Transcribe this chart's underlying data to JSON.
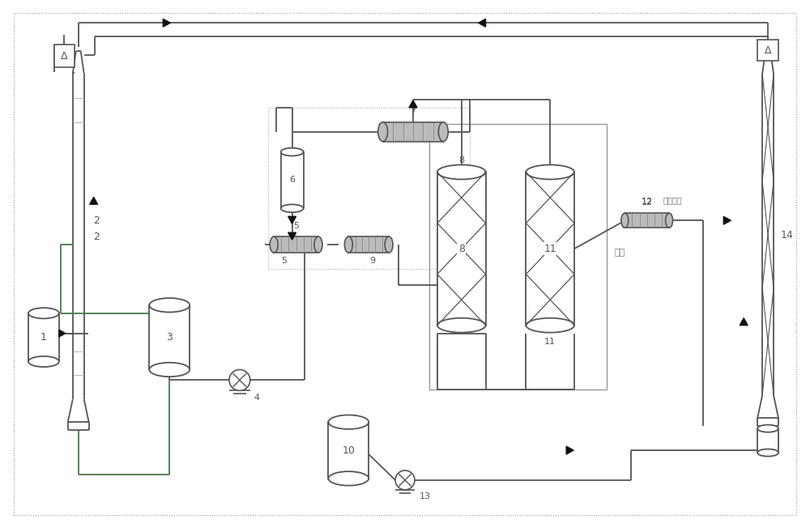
{
  "bg_color": "#ffffff",
  "lc": "#555555",
  "gc": "#4a7a4a",
  "ac": "#111111",
  "fig_width": 10.0,
  "fig_height": 6.52,
  "dpi": 100
}
